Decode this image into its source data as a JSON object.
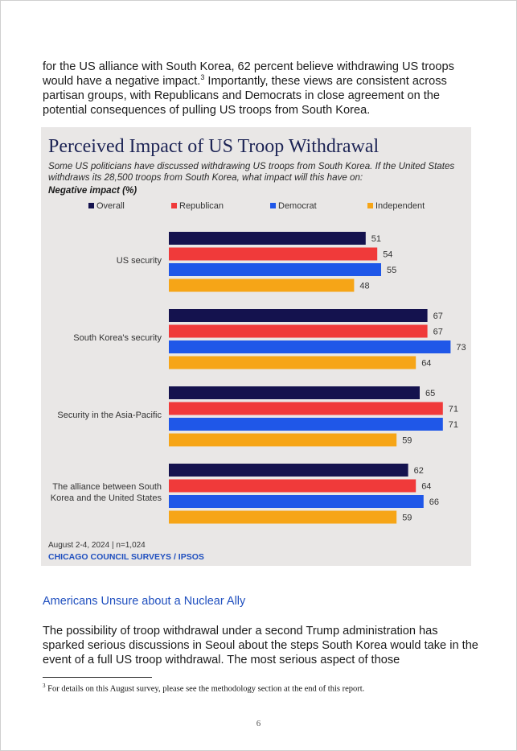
{
  "intro": {
    "text": "for the US alliance with South Korea, 62 percent believe withdrawing US troops would have a negative impact.",
    "ref": "3",
    "text_after": " Importantly, these views are consistent across partisan groups, with Republicans and Democrats in close agreement on the potential consequences of pulling US troops from South Korea."
  },
  "colors": {
    "overall": "#14124e",
    "republican": "#f03a3a",
    "democrat": "#1f57e8",
    "independent": "#f6a517"
  },
  "chart_data": {
    "type": "bar",
    "orientation": "horizontal",
    "title": "Perceived Impact of US Troop Withdrawal",
    "subtitle": "Some US politicians have discussed withdrawing US troops from South Korea. If the United States withdraws its 28,500 troops from South Korea, what impact will this have on:",
    "metric": "Negative impact (%)",
    "categories": [
      "US security",
      "South Korea's security",
      "Security in the Asia-Pacific",
      "The alliance between South Korea and the United States"
    ],
    "series": [
      {
        "name": "Overall",
        "values": [
          51,
          67,
          65,
          62
        ]
      },
      {
        "name": "Republican",
        "values": [
          54,
          67,
          71,
          64
        ]
      },
      {
        "name": "Democrat",
        "values": [
          55,
          73,
          71,
          66
        ]
      },
      {
        "name": "Independent",
        "values": [
          48,
          64,
          59,
          59
        ]
      }
    ],
    "xlim": [
      0,
      100
    ],
    "grid": false,
    "legend": "top",
    "footer": "August 2-4, 2024 | n=1,024",
    "source": "CHICAGO COUNCIL SURVEYS / IPSOS"
  },
  "section": {
    "heading": "Americans Unsure about a Nuclear Ally",
    "body": "The possibility of troop withdrawal under a second Trump administration has sparked serious discussions in Seoul about the steps South Korea would take in the event of a full US troop withdrawal. The most serious aspect of those"
  },
  "footnote": {
    "number": "3",
    "text": " For details on this August survey, please see the methodology section at the end of this report."
  },
  "page_number": "6"
}
